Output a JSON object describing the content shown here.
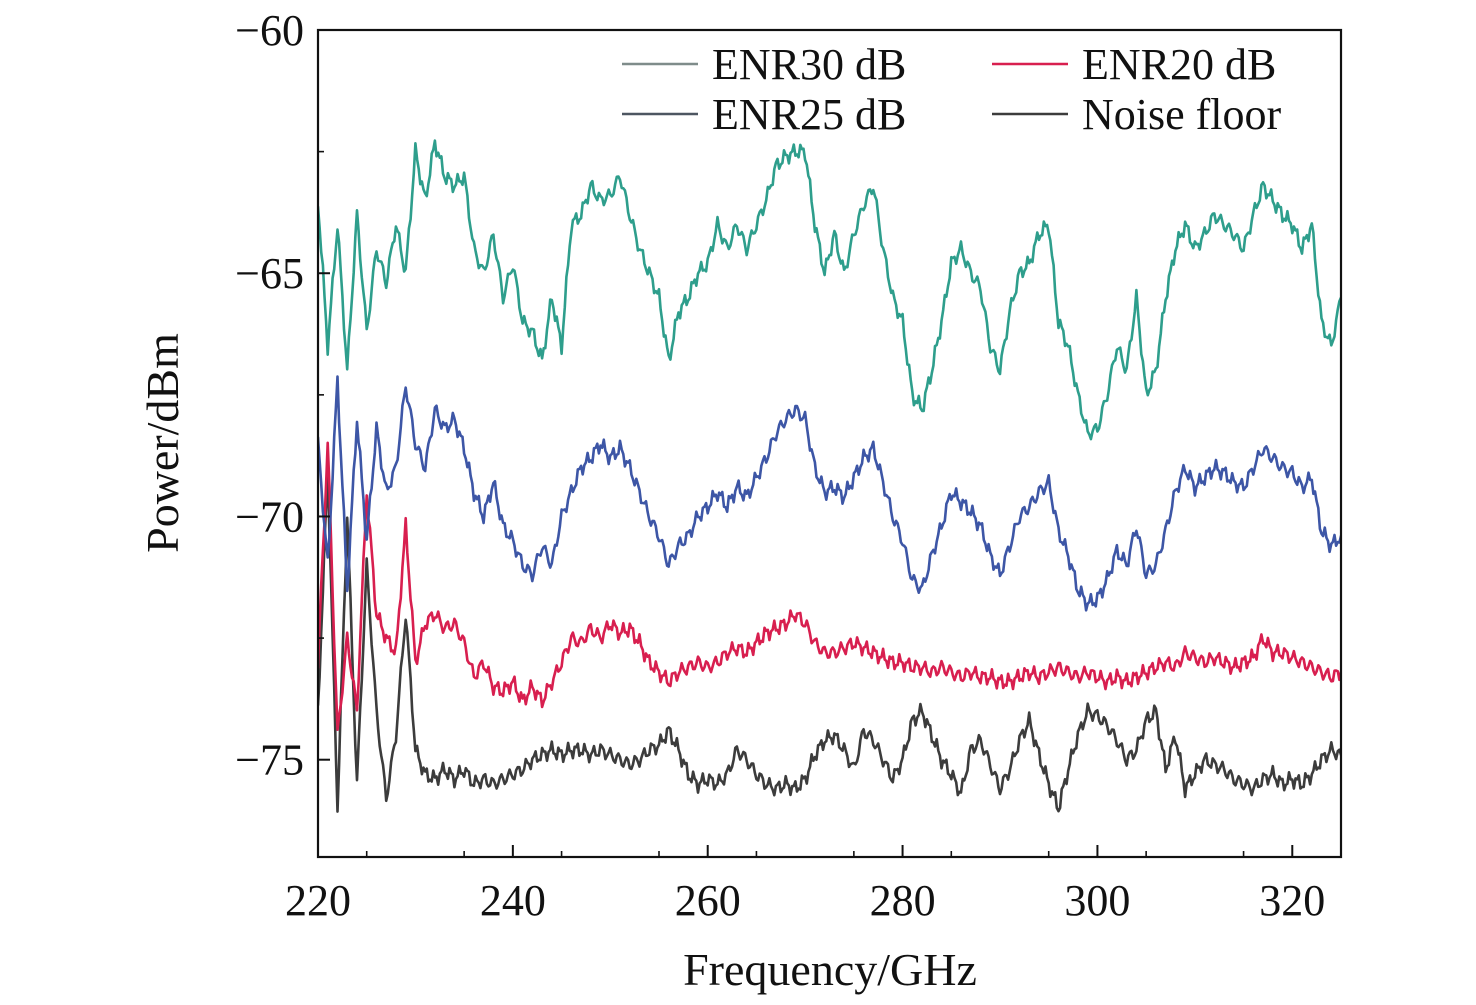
{
  "chart_data": {
    "type": "line",
    "title": "",
    "xlabel": "Frequency/GHz",
    "ylabel": "Power/dBm",
    "xlim": [
      220,
      325
    ],
    "ylim": [
      -77,
      -60
    ],
    "xticks": [
      220,
      240,
      260,
      280,
      300,
      320
    ],
    "yticks": [
      -60,
      -65,
      -70,
      -75
    ],
    "xtick_labels": [
      "220",
      "240",
      "260",
      "280",
      "300",
      "320"
    ],
    "ytick_labels": [
      "−60",
      "−65",
      "−70",
      "−75"
    ],
    "grid": false,
    "legend_position": "top-right",
    "series": [
      {
        "name": "ENR30 dB",
        "color": "#2e9e8c",
        "legend_color": "#7f8c8a",
        "x": [
          220,
          221,
          222,
          223,
          224,
          225,
          226,
          227,
          228,
          229,
          230,
          231,
          232,
          233,
          234,
          235,
          236,
          237,
          238,
          239,
          240,
          241,
          242,
          243,
          244,
          245,
          246,
          247,
          248,
          249,
          250,
          251,
          252,
          253,
          254,
          255,
          256,
          257,
          258,
          259,
          260,
          261,
          262,
          263,
          264,
          265,
          266,
          267,
          268,
          269,
          270,
          271,
          272,
          273,
          274,
          275,
          276,
          277,
          278,
          279,
          280,
          281,
          282,
          283,
          284,
          285,
          286,
          287,
          288,
          289,
          290,
          291,
          292,
          293,
          294,
          295,
          296,
          297,
          298,
          299,
          300,
          301,
          302,
          303,
          304,
          305,
          306,
          307,
          308,
          309,
          310,
          311,
          312,
          313,
          314,
          315,
          316,
          317,
          318,
          319,
          320,
          321,
          322,
          323,
          324,
          325
        ],
        "y": [
          -63.5,
          -66.5,
          -64.0,
          -67.0,
          -63.8,
          -66.2,
          -64.5,
          -65.2,
          -64.0,
          -65.0,
          -62.5,
          -63.5,
          -62.3,
          -63.0,
          -63.2,
          -63.0,
          -64.5,
          -65.0,
          -64.2,
          -65.5,
          -64.8,
          -66.0,
          -66.2,
          -66.8,
          -65.5,
          -66.5,
          -64.0,
          -63.8,
          -63.2,
          -63.5,
          -63.4,
          -63.0,
          -63.8,
          -64.5,
          -65.0,
          -65.5,
          -66.8,
          -65.8,
          -65.5,
          -65.0,
          -64.8,
          -64.0,
          -64.5,
          -64.0,
          -64.5,
          -64.0,
          -63.5,
          -62.8,
          -62.6,
          -62.5,
          -62.5,
          -64.0,
          -65.0,
          -64.2,
          -65.0,
          -64.2,
          -63.6,
          -63.2,
          -64.5,
          -65.5,
          -66.0,
          -67.5,
          -67.8,
          -67.0,
          -66.0,
          -64.8,
          -64.5,
          -65.0,
          -65.3,
          -66.5,
          -67.0,
          -65.8,
          -65.0,
          -64.8,
          -64.2,
          -64.0,
          -66.0,
          -66.5,
          -67.5,
          -68.3,
          -68.2,
          -67.5,
          -66.5,
          -67.0,
          -65.5,
          -67.5,
          -67.0,
          -65.5,
          -64.5,
          -64.0,
          -64.5,
          -64.2,
          -63.8,
          -64.0,
          -64.2,
          -64.5,
          -63.8,
          -63.2,
          -63.5,
          -63.8,
          -64.0,
          -64.5,
          -64.0,
          -66.0,
          -66.5,
          -65.5
        ]
      },
      {
        "name": "ENR20 dB",
        "color": "#d81f4f",
        "legend_color": "#d81f4f",
        "x": [
          220,
          221,
          222,
          223,
          224,
          225,
          226,
          227,
          228,
          229,
          230,
          231,
          232,
          233,
          234,
          235,
          236,
          237,
          238,
          239,
          240,
          241,
          242,
          243,
          244,
          245,
          246,
          247,
          248,
          249,
          250,
          251,
          252,
          253,
          254,
          255,
          256,
          257,
          258,
          259,
          260,
          261,
          262,
          263,
          264,
          265,
          266,
          267,
          268,
          269,
          270,
          271,
          272,
          273,
          274,
          275,
          276,
          277,
          278,
          279,
          280,
          281,
          282,
          283,
          284,
          285,
          286,
          287,
          288,
          289,
          290,
          291,
          292,
          293,
          294,
          295,
          296,
          297,
          298,
          299,
          300,
          301,
          302,
          303,
          304,
          305,
          306,
          307,
          308,
          309,
          310,
          311,
          312,
          313,
          314,
          315,
          316,
          317,
          318,
          319,
          320,
          321,
          322,
          323,
          324,
          325
        ],
        "y": [
          -73.0,
          -68.5,
          -74.5,
          -72.5,
          -74.0,
          -69.5,
          -72.0,
          -72.5,
          -72.8,
          -70.2,
          -73.0,
          -72.2,
          -72.0,
          -72.3,
          -72.2,
          -72.6,
          -73.3,
          -73.0,
          -73.5,
          -73.6,
          -73.4,
          -73.8,
          -73.5,
          -73.8,
          -73.4,
          -73.0,
          -72.5,
          -72.6,
          -72.3,
          -72.5,
          -72.2,
          -72.4,
          -72.3,
          -72.6,
          -73.0,
          -73.2,
          -73.4,
          -73.2,
          -73.1,
          -73.0,
          -73.1,
          -73.0,
          -72.8,
          -72.7,
          -72.8,
          -72.6,
          -72.4,
          -72.3,
          -72.2,
          -72.0,
          -72.2,
          -72.6,
          -72.8,
          -72.8,
          -72.7,
          -72.6,
          -72.7,
          -72.8,
          -72.9,
          -73.0,
          -73.0,
          -73.1,
          -73.1,
          -73.2,
          -73.1,
          -73.2,
          -73.3,
          -73.2,
          -73.3,
          -73.3,
          -73.4,
          -73.4,
          -73.3,
          -73.2,
          -73.3,
          -73.2,
          -73.1,
          -73.2,
          -73.3,
          -73.2,
          -73.3,
          -73.4,
          -73.3,
          -73.4,
          -73.3,
          -73.2,
          -73.1,
          -73.0,
          -73.1,
          -72.8,
          -72.9,
          -73.0,
          -72.9,
          -73.0,
          -73.1,
          -73.0,
          -72.9,
          -72.5,
          -72.8,
          -72.8,
          -72.9,
          -73.0,
          -73.1,
          -73.2,
          -73.3,
          -73.2
        ]
      },
      {
        "name": "ENR25 dB",
        "color": "#3d56a6",
        "legend_color": "#4d5661",
        "x": [
          220,
          221,
          222,
          223,
          224,
          225,
          226,
          227,
          228,
          229,
          230,
          231,
          232,
          233,
          234,
          235,
          236,
          237,
          238,
          239,
          240,
          241,
          242,
          243,
          244,
          245,
          246,
          247,
          248,
          249,
          250,
          251,
          252,
          253,
          254,
          255,
          256,
          257,
          258,
          259,
          260,
          261,
          262,
          263,
          264,
          265,
          266,
          267,
          268,
          269,
          270,
          271,
          272,
          273,
          274,
          275,
          276,
          277,
          278,
          279,
          280,
          281,
          282,
          283,
          284,
          285,
          286,
          287,
          288,
          289,
          290,
          291,
          292,
          293,
          294,
          295,
          296,
          297,
          298,
          299,
          300,
          301,
          302,
          303,
          304,
          305,
          306,
          307,
          308,
          309,
          310,
          311,
          312,
          313,
          314,
          315,
          316,
          317,
          318,
          319,
          320,
          321,
          322,
          323,
          324,
          325
        ],
        "y": [
          -68.5,
          -71.0,
          -67.2,
          -71.5,
          -68.0,
          -70.5,
          -68.2,
          -69.5,
          -69.0,
          -67.3,
          -68.5,
          -69.0,
          -67.8,
          -68.2,
          -68.0,
          -68.6,
          -69.5,
          -70.0,
          -69.3,
          -70.2,
          -70.5,
          -71.0,
          -71.2,
          -70.6,
          -71.0,
          -70.0,
          -69.5,
          -69.0,
          -68.8,
          -68.5,
          -68.8,
          -68.6,
          -69.0,
          -69.5,
          -70.0,
          -70.4,
          -71.0,
          -70.6,
          -70.4,
          -70.0,
          -69.8,
          -69.5,
          -69.8,
          -69.4,
          -69.6,
          -69.2,
          -68.8,
          -68.3,
          -68.0,
          -67.8,
          -68.0,
          -69.0,
          -69.5,
          -69.4,
          -69.6,
          -69.2,
          -68.8,
          -68.6,
          -69.3,
          -70.0,
          -70.5,
          -71.3,
          -71.5,
          -70.8,
          -70.2,
          -69.5,
          -69.7,
          -69.9,
          -70.2,
          -70.8,
          -71.2,
          -70.6,
          -70.0,
          -69.8,
          -69.5,
          -69.3,
          -70.3,
          -70.8,
          -71.5,
          -71.8,
          -71.7,
          -71.3,
          -70.7,
          -71.0,
          -70.2,
          -71.2,
          -71.0,
          -70.3,
          -69.5,
          -69.0,
          -69.4,
          -69.2,
          -69.0,
          -69.1,
          -69.3,
          -69.4,
          -69.0,
          -68.6,
          -68.8,
          -69.0,
          -69.1,
          -69.4,
          -69.2,
          -70.3,
          -70.6,
          -70.4
        ]
      },
      {
        "name": "Noise floor",
        "color": "#3c3c3c",
        "legend_color": "#3c3c3c",
        "x": [
          220,
          221,
          222,
          223,
          224,
          225,
          226,
          227,
          228,
          229,
          230,
          231,
          232,
          233,
          234,
          235,
          236,
          237,
          238,
          239,
          240,
          241,
          242,
          243,
          244,
          245,
          246,
          247,
          248,
          249,
          250,
          251,
          252,
          253,
          254,
          255,
          256,
          257,
          258,
          259,
          260,
          261,
          262,
          263,
          264,
          265,
          266,
          267,
          268,
          269,
          270,
          271,
          272,
          273,
          274,
          275,
          276,
          277,
          278,
          279,
          280,
          281,
          282,
          283,
          284,
          285,
          286,
          287,
          288,
          289,
          290,
          291,
          292,
          293,
          294,
          295,
          296,
          297,
          298,
          299,
          300,
          301,
          302,
          303,
          304,
          305,
          306,
          307,
          308,
          309,
          310,
          311,
          312,
          313,
          314,
          315,
          316,
          317,
          318,
          319,
          320,
          321,
          322,
          323,
          324,
          325
        ],
        "y": [
          -74.0,
          -69.0,
          -76.0,
          -70.0,
          -75.5,
          -71.0,
          -74.0,
          -75.8,
          -74.5,
          -72.0,
          -74.8,
          -75.3,
          -75.4,
          -75.2,
          -75.4,
          -75.2,
          -75.5,
          -75.4,
          -75.5,
          -75.4,
          -75.3,
          -75.2,
          -75.0,
          -74.9,
          -74.8,
          -74.9,
          -74.8,
          -74.8,
          -74.9,
          -74.8,
          -74.9,
          -75.0,
          -75.1,
          -75.0,
          -74.8,
          -74.7,
          -74.4,
          -74.8,
          -75.3,
          -75.5,
          -75.4,
          -75.5,
          -75.3,
          -74.8,
          -75.0,
          -75.3,
          -75.5,
          -75.6,
          -75.5,
          -75.6,
          -75.4,
          -74.9,
          -74.6,
          -74.5,
          -74.8,
          -75.2,
          -74.4,
          -74.6,
          -75.0,
          -75.4,
          -75.0,
          -74.2,
          -74.0,
          -74.5,
          -75.0,
          -75.3,
          -75.7,
          -74.8,
          -74.6,
          -75.1,
          -75.6,
          -75.2,
          -74.6,
          -74.2,
          -74.9,
          -75.5,
          -76.0,
          -75.2,
          -74.5,
          -74.0,
          -74.1,
          -74.3,
          -74.6,
          -75.0,
          -74.8,
          -74.2,
          -74.0,
          -75.2,
          -74.5,
          -75.6,
          -75.3,
          -75.0,
          -75.1,
          -75.2,
          -75.4,
          -75.5,
          -75.6,
          -75.4,
          -75.3,
          -75.5,
          -75.4,
          -75.5,
          -75.3,
          -75.0,
          -74.8,
          -74.9
        ]
      }
    ]
  }
}
